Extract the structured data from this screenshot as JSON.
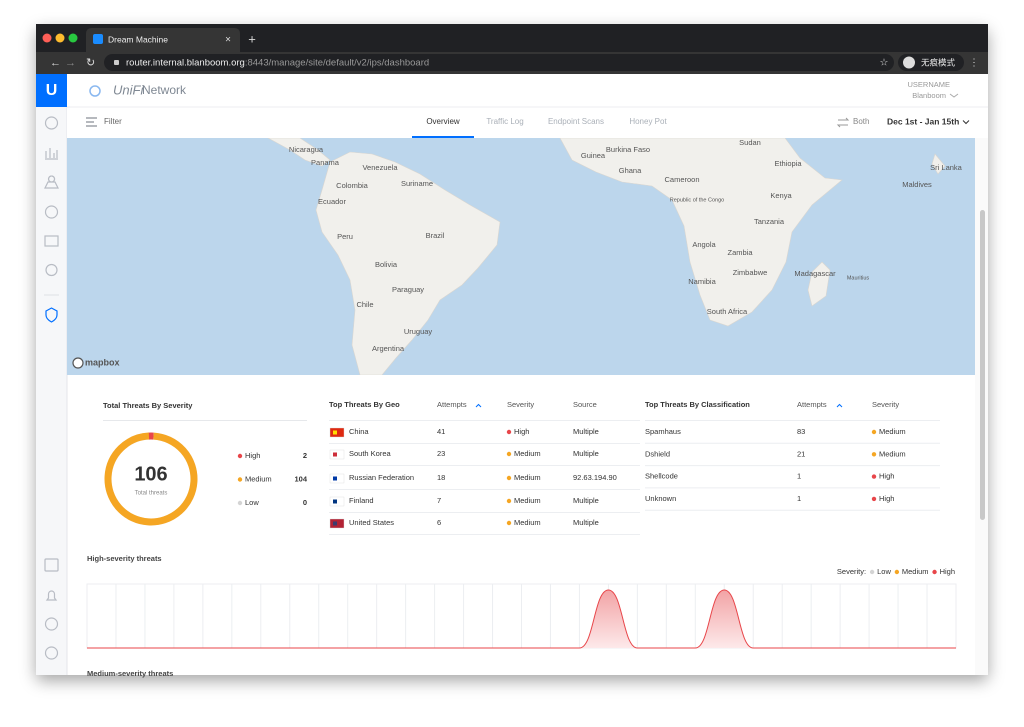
{
  "browser": {
    "tab_title": "Dream Machine",
    "url_host": "router.internal.blanboom.org",
    "url_path": ":8443/manage/site/default/v2/ips/dashboard",
    "profile": "无痕模式"
  },
  "header": {
    "brand": "UniFi",
    "product": "Network",
    "user_role": "USERNAME",
    "user_name": "Blanboom"
  },
  "toolbar": {
    "filter": "Filter",
    "tabs": [
      "Overview",
      "Traffic Log",
      "Endpoint Scans",
      "Honey Pot"
    ],
    "active_tab": 0,
    "direction": "Both",
    "date_range": "Dec 1st - Jan 15th"
  },
  "map": {
    "labels": [
      "Nicaragua",
      "Panama",
      "Venezuela",
      "Colombia",
      "Suriname",
      "Ecuador",
      "Peru",
      "Brazil",
      "Bolivia",
      "Paraguay",
      "Chile",
      "Uruguay",
      "Argentina",
      "Guinea",
      "Burkina Faso",
      "Ghana",
      "Cameroon",
      "Republic of the Congo",
      "Sudan",
      "Ethiopia",
      "Kenya",
      "Tanzania",
      "Angola",
      "Zambia",
      "Zimbabwe",
      "Namibia",
      "Madagascar",
      "Mauritius",
      "South Africa",
      "Sri Lanka",
      "Maldives"
    ],
    "attribution": "mapbox"
  },
  "severity_colors": {
    "High": "#e8464a",
    "Medium": "#f5a623",
    "Low": "#d4d4d4"
  },
  "severity": {
    "title": "Total Threats By Severity",
    "total": 106,
    "total_label": "Total threats",
    "levels": [
      {
        "name": "High",
        "count": 2
      },
      {
        "name": "Medium",
        "count": 104
      },
      {
        "name": "Low",
        "count": 0
      }
    ]
  },
  "geo_table": {
    "title": "Top Threats By Geo",
    "columns": [
      "Attempts",
      "Severity",
      "Source"
    ],
    "rows": [
      {
        "country": "China",
        "attempts": 41,
        "severity": "High",
        "source": "Multiple"
      },
      {
        "country": "South Korea",
        "attempts": 23,
        "severity": "Medium",
        "source": "Multiple"
      },
      {
        "country": "Russian Federation",
        "attempts": 18,
        "severity": "Medium",
        "source": "92.63.194.90"
      },
      {
        "country": "Finland",
        "attempts": 7,
        "severity": "Medium",
        "source": "Multiple"
      },
      {
        "country": "United States",
        "attempts": 6,
        "severity": "Medium",
        "source": "Multiple"
      }
    ]
  },
  "class_table": {
    "title": "Top Threats By Classification",
    "columns": [
      "Attempts",
      "Severity"
    ],
    "rows": [
      {
        "name": "Spamhaus",
        "attempts": 83,
        "severity": "Medium"
      },
      {
        "name": "Dshield",
        "attempts": 21,
        "severity": "Medium"
      },
      {
        "name": "Shellcode",
        "attempts": 1,
        "severity": "High"
      },
      {
        "name": "Unknown",
        "attempts": 1,
        "severity": "High"
      }
    ]
  },
  "high_chart": {
    "title": "High-severity threats",
    "legend_title": "Severity:",
    "legend": [
      "Low",
      "Medium",
      "High"
    ],
    "values": [
      0,
      0,
      0,
      0,
      0,
      0,
      0,
      0,
      0,
      0,
      0,
      0,
      0,
      0,
      0,
      0,
      0,
      0,
      1,
      0,
      0,
      0,
      1,
      0,
      0,
      0,
      0,
      0,
      0,
      0,
      0
    ]
  },
  "next_section": "Medium-severity threats"
}
